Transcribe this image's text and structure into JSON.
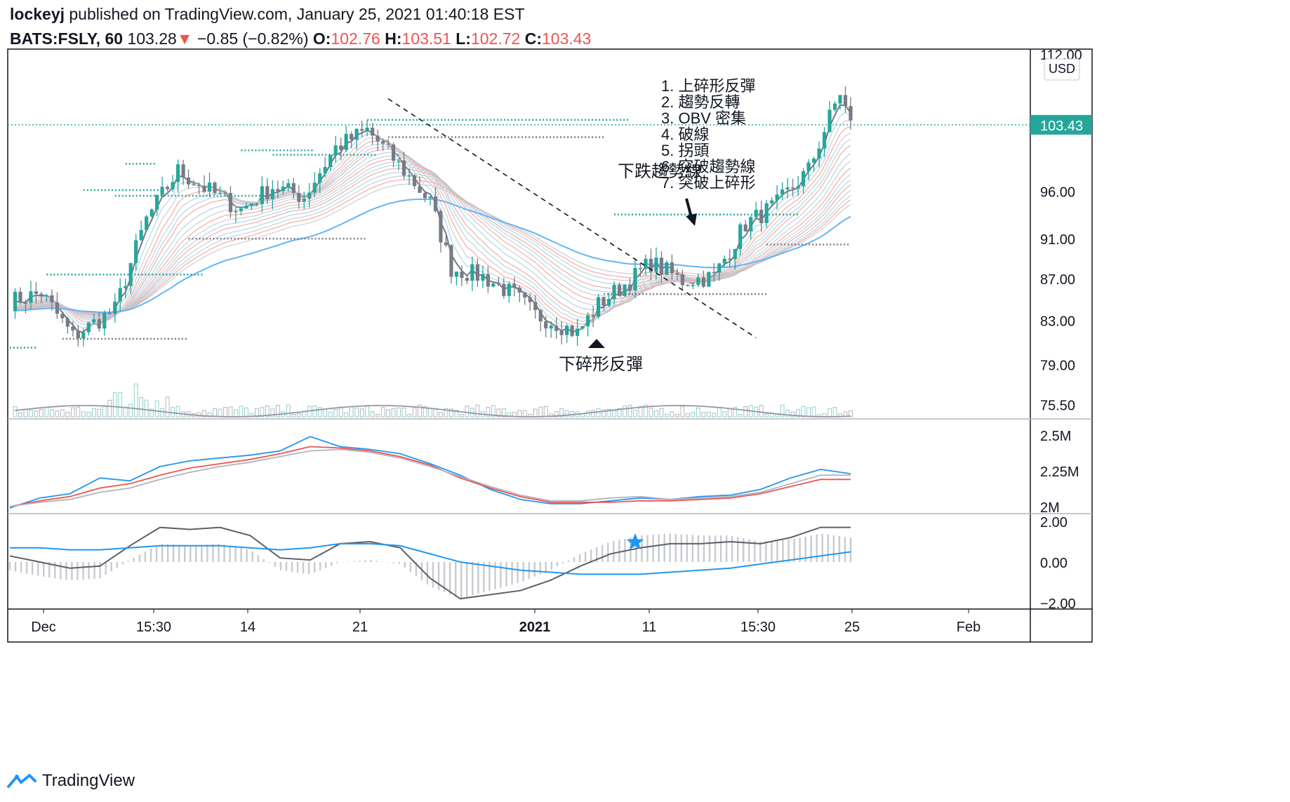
{
  "header": {
    "author": "lockeyj",
    "published_text": "published on TradingView.com, January 25, 2021 01:40:18 EST",
    "symbol": "BATS:FSLY, 60",
    "last": "103.28",
    "change_arrow": "▼",
    "change": "−0.85 (−0.82%)",
    "o_label": "O:",
    "o_value": "102.76",
    "h_label": "H:",
    "h_value": "103.51",
    "l_label": "L:",
    "l_value": "102.72",
    "c_label": "C:",
    "c_value": "103.43"
  },
  "footer": {
    "brand": "TradingView",
    "logo_icon": "tradingview-logo-icon"
  },
  "colors": {
    "bull": "#26a69a",
    "bear": "#787b86",
    "down": "#ef5350",
    "line_blue": "#2196f3",
    "line_gray": "#5d606b",
    "grid_border": "#131722"
  },
  "chart_data": [
    {
      "type": "candlestick",
      "title": "",
      "currency_badge": "USD",
      "last_price_label": "103.43",
      "y_tick_labels": [
        "112.00",
        "96.00",
        "91.00",
        "87.00",
        "83.00",
        "79.00",
        "75.50"
      ],
      "y_scale": "log",
      "ylim": [
        74.3,
        112.0
      ],
      "x_tick_labels": [
        "Dec",
        "15:30",
        "14",
        "21",
        "2021",
        "11",
        "15:30",
        "25",
        "Feb"
      ],
      "x_tick_bold": [
        "2021"
      ],
      "close_path": [
        [
          0,
          84.8
        ],
        [
          6,
          85.6
        ],
        [
          12,
          81.5
        ],
        [
          20,
          84.0
        ],
        [
          26,
          93.0
        ],
        [
          32,
          98.2
        ],
        [
          38,
          96.0
        ],
        [
          44,
          94.0
        ],
        [
          50,
          96.5
        ],
        [
          56,
          95.4
        ],
        [
          62,
          100.8
        ],
        [
          68,
          102.8
        ],
        [
          74,
          98.9
        ],
        [
          80,
          94.8
        ],
        [
          84,
          88.0
        ],
        [
          90,
          87.2
        ],
        [
          96,
          85.4
        ],
        [
          100,
          83.5
        ],
        [
          104,
          82.8
        ],
        [
          108,
          81.8
        ],
        [
          112,
          84.5
        ],
        [
          118,
          86.8
        ],
        [
          122,
          88.6
        ],
        [
          128,
          86.8
        ],
        [
          134,
          87.2
        ],
        [
          140,
          92.5
        ],
        [
          146,
          94.6
        ],
        [
          152,
          98.3
        ],
        [
          158,
          107.3
        ],
        [
          160,
          103.4
        ]
      ],
      "annotations": {
        "downtrend_label": "下跌趨勢線",
        "lower_fractal_label": "下碎形反彈",
        "checklist": [
          "1. 上碎形反彈",
          "2. 趨勢反轉",
          "3. OBV 密集",
          "4. 破線",
          "5. 拐頭",
          "6. 突破趨勢線",
          "7. 突破上碎形"
        ]
      }
    },
    {
      "type": "line",
      "title": "",
      "y_tick_labels": [
        "2.5M",
        "2.25M",
        "2M"
      ],
      "ylim": [
        1.98,
        2.55
      ],
      "series": [
        {
          "color": "#2196f3",
          "values": [
            1.99,
            2.06,
            2.09,
            2.2,
            2.18,
            2.28,
            2.32,
            2.34,
            2.36,
            2.39,
            2.49,
            2.42,
            2.4,
            2.37,
            2.3,
            2.22,
            2.12,
            2.05,
            2.02,
            2.02,
            2.04,
            2.06,
            2.05,
            2.07,
            2.08,
            2.12,
            2.2,
            2.26,
            2.23
          ]
        },
        {
          "color": "#ef5350",
          "values": [
            2.0,
            2.04,
            2.07,
            2.13,
            2.16,
            2.22,
            2.27,
            2.3,
            2.33,
            2.37,
            2.42,
            2.41,
            2.39,
            2.35,
            2.29,
            2.2,
            2.13,
            2.07,
            2.03,
            2.03,
            2.03,
            2.04,
            2.04,
            2.05,
            2.06,
            2.09,
            2.14,
            2.19,
            2.19
          ]
        },
        {
          "color": "#b2b5be",
          "values": [
            2.0,
            2.03,
            2.05,
            2.1,
            2.13,
            2.19,
            2.24,
            2.28,
            2.31,
            2.35,
            2.39,
            2.4,
            2.38,
            2.34,
            2.28,
            2.21,
            2.14,
            2.08,
            2.04,
            2.04,
            2.06,
            2.07,
            2.05,
            2.06,
            2.07,
            2.1,
            2.16,
            2.22,
            2.22
          ]
        }
      ]
    },
    {
      "type": "line",
      "title": "",
      "y_tick_labels": [
        "2.00",
        "0.00",
        "−2.00"
      ],
      "ylim": [
        -2.1,
        2.1
      ],
      "marker_icon": "star-icon",
      "series": [
        {
          "color": "#5d606b",
          "values": [
            0.3,
            0.0,
            -0.3,
            -0.2,
            0.8,
            1.7,
            1.6,
            1.7,
            1.3,
            0.2,
            0.1,
            0.9,
            1.0,
            0.7,
            -0.8,
            -1.8,
            -1.6,
            -1.4,
            -0.9,
            -0.2,
            0.4,
            0.7,
            0.9,
            0.9,
            1.0,
            0.9,
            1.2,
            1.7,
            1.7
          ]
        },
        {
          "color": "#2196f3",
          "values": [
            0.7,
            0.7,
            0.6,
            0.6,
            0.7,
            0.8,
            0.8,
            0.8,
            0.7,
            0.6,
            0.7,
            0.9,
            0.9,
            0.8,
            0.4,
            0.0,
            -0.2,
            -0.4,
            -0.5,
            -0.6,
            -0.6,
            -0.6,
            -0.5,
            -0.4,
            -0.3,
            -0.1,
            0.1,
            0.3,
            0.5
          ]
        },
        {
          "color": "#b2b5be",
          "type": "histogram",
          "values": [
            -0.4,
            -0.7,
            -0.9,
            -0.8,
            0.1,
            0.9,
            0.8,
            0.9,
            0.6,
            -0.4,
            -0.6,
            0.0,
            0.1,
            -0.1,
            -1.2,
            -1.8,
            -1.4,
            -1.0,
            -0.4,
            0.4,
            1.0,
            1.3,
            1.4,
            1.3,
            1.3,
            1.0,
            1.1,
            1.4,
            1.2
          ]
        }
      ]
    }
  ]
}
